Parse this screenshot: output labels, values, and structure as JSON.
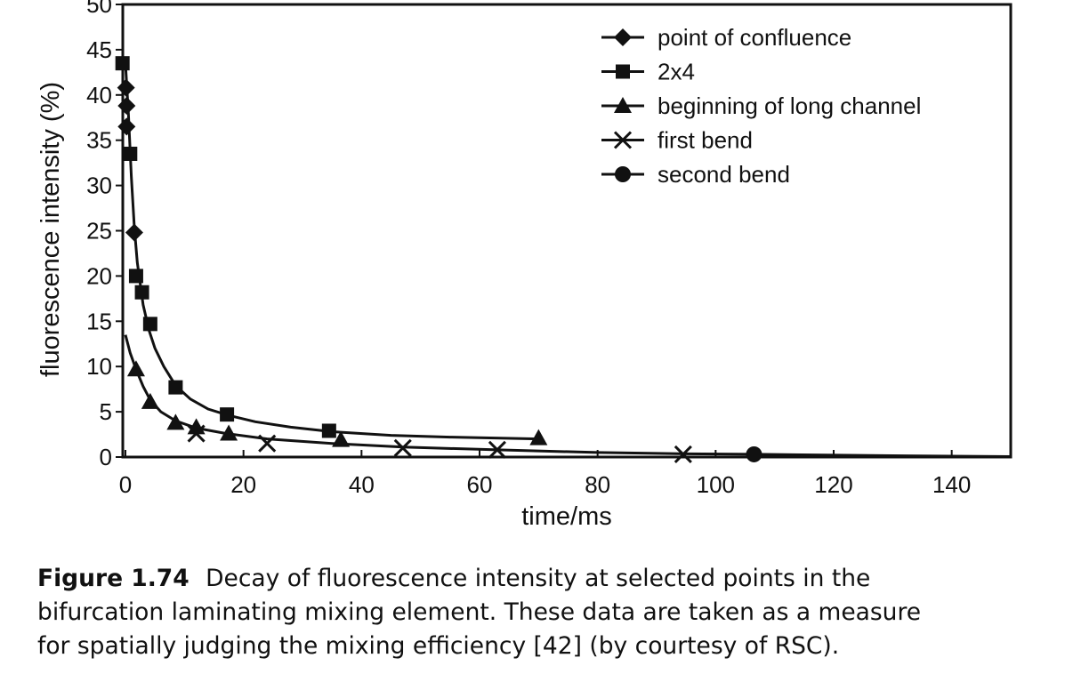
{
  "chart_data": {
    "type": "scatter",
    "xlabel": "time/ms",
    "ylabel": "fluorescence intensity (%)",
    "xlim": [
      0,
      150
    ],
    "ylim": [
      0,
      50
    ],
    "xticks": [
      "0",
      "20",
      "40",
      "60",
      "80",
      "100",
      "120",
      "140"
    ],
    "yticks": [
      "0",
      "5",
      "10",
      "15",
      "20",
      "25",
      "30",
      "35",
      "40",
      "45",
      "50"
    ],
    "grid": false,
    "legend_position": "top-right",
    "series": [
      {
        "name": "point of confluence",
        "marker": "diamond",
        "points": [
          [
            0.2,
            36.5
          ],
          [
            0.2,
            38.8
          ],
          [
            0.1,
            40.8
          ],
          [
            1.5,
            24.8
          ]
        ]
      },
      {
        "name": "2x4",
        "marker": "square",
        "points": [
          [
            -0.5,
            43.5
          ],
          [
            0.8,
            33.5
          ],
          [
            1.8,
            20.0
          ],
          [
            2.8,
            18.2
          ],
          [
            4.2,
            14.7
          ],
          [
            8.5,
            7.7
          ],
          [
            17.2,
            4.7
          ],
          [
            34.5,
            2.9
          ]
        ]
      },
      {
        "name": "beginning of long channel",
        "marker": "triangle",
        "points": [
          [
            1.8,
            9.7
          ],
          [
            4.2,
            6.1
          ],
          [
            8.5,
            3.8
          ],
          [
            12.0,
            3.3
          ],
          [
            17.5,
            2.6
          ],
          [
            36.5,
            1.9
          ],
          [
            70.0,
            2.1
          ]
        ]
      },
      {
        "name": "first bend",
        "marker": "x",
        "points": [
          [
            12.0,
            2.6
          ],
          [
            24.0,
            1.5
          ],
          [
            47.0,
            1.0
          ],
          [
            63.0,
            0.8
          ],
          [
            94.5,
            0.3
          ]
        ]
      },
      {
        "name": "second bend",
        "marker": "circle",
        "points": [
          [
            106.5,
            0.3
          ]
        ]
      }
    ],
    "fitted_curves": [
      {
        "points": [
          [
            0,
            43.5
          ],
          [
            0.5,
            38
          ],
          [
            1.0,
            31
          ],
          [
            1.5,
            25.5
          ],
          [
            2.0,
            21.5
          ],
          [
            3.0,
            16.8
          ],
          [
            4.0,
            14.0
          ],
          [
            5.0,
            12.0
          ],
          [
            6.5,
            10.0
          ],
          [
            8.5,
            7.9
          ],
          [
            11.0,
            6.4
          ],
          [
            14.0,
            5.3
          ],
          [
            17.5,
            4.6
          ],
          [
            22.0,
            3.9
          ],
          [
            28.0,
            3.3
          ],
          [
            35.0,
            2.8
          ],
          [
            45.0,
            2.4
          ],
          [
            55.0,
            2.2
          ],
          [
            70.0,
            2.0
          ]
        ]
      },
      {
        "points": [
          [
            0,
            13.5
          ],
          [
            0.8,
            11.5
          ],
          [
            1.8,
            9.7
          ],
          [
            3.0,
            7.8
          ],
          [
            4.2,
            6.3
          ],
          [
            6.0,
            5.0
          ],
          [
            8.5,
            4.0
          ],
          [
            12.0,
            3.2
          ],
          [
            17.0,
            2.6
          ],
          [
            24.0,
            2.0
          ],
          [
            35.0,
            1.5
          ],
          [
            47.0,
            1.1
          ],
          [
            63.0,
            0.8
          ],
          [
            80.0,
            0.5
          ],
          [
            95.0,
            0.35
          ],
          [
            106.5,
            0.3
          ],
          [
            130.0,
            0.15
          ],
          [
            150.0,
            0.05
          ]
        ]
      }
    ]
  },
  "caption": {
    "label": "Figure 1.74",
    "line1": "Decay of fluorescence intensity at selected points in the",
    "line2": "bifurcation laminating mixing element. These data are taken as a measure",
    "line3": "for spatially judging the mixing efficiency [42] (by courtesy of RSC)."
  }
}
